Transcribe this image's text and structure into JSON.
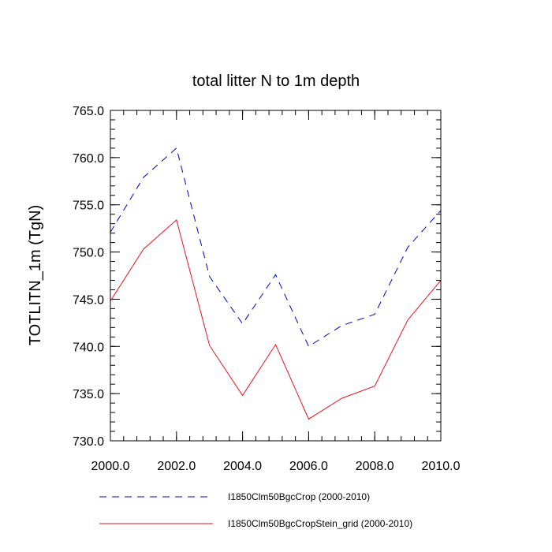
{
  "chart_data": {
    "type": "line",
    "title": "total litter N to 1m depth",
    "xlabel": "",
    "ylabel": "TOTLITN_1m  (TgN)",
    "xlim": [
      2000,
      2010
    ],
    "ylim": [
      730,
      765
    ],
    "x_ticks": [
      "2000.0",
      "2002.0",
      "2004.0",
      "2006.0",
      "2008.0",
      "2010.0"
    ],
    "y_ticks": [
      "730.0",
      "735.0",
      "740.0",
      "745.0",
      "750.0",
      "755.0",
      "760.0",
      "765.0"
    ],
    "x": [
      2000,
      2001,
      2002,
      2003,
      2004,
      2005,
      2006,
      2007,
      2008,
      2009,
      2010
    ],
    "series": [
      {
        "name": "I1850Clm50BgcCrop (2000-2010)",
        "color": "#0000cc",
        "dash": "dashed",
        "values": [
          752.1,
          757.9,
          761.0,
          747.4,
          742.4,
          747.6,
          740.0,
          742.2,
          743.4,
          750.5,
          754.4
        ]
      },
      {
        "name": "I1850Clm50BgcCropStein_grid (2000-2010)",
        "color": "#e8141e",
        "dash": "solid",
        "values": [
          744.8,
          750.3,
          753.4,
          740.1,
          734.8,
          740.2,
          732.3,
          734.5,
          735.8,
          742.8,
          747.0
        ]
      }
    ],
    "grid": false,
    "legend_position": "bottom"
  }
}
